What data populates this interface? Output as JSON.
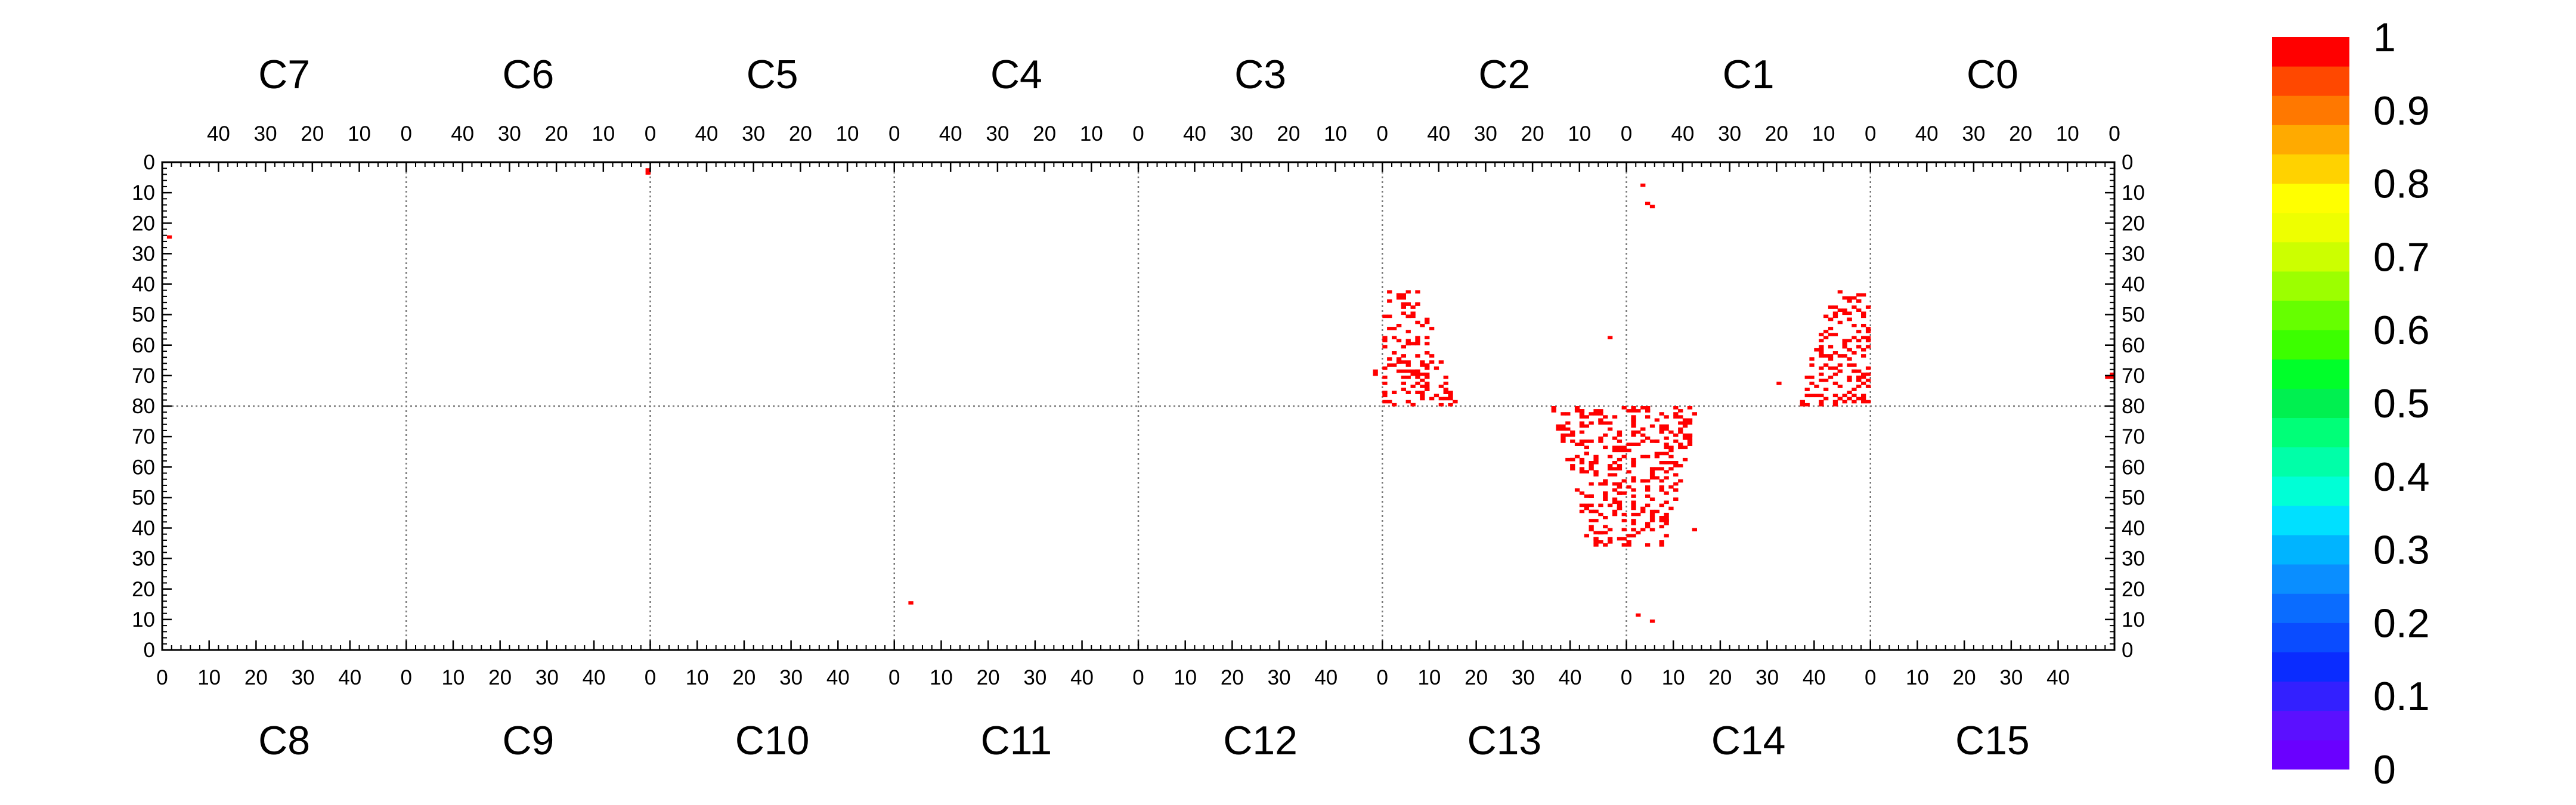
{
  "chart_data": {
    "type": "heatmap",
    "title": "",
    "xlabel": "",
    "ylabel": "",
    "grid": "dotted dividers between chips",
    "top_chips": [
      "C7",
      "C6",
      "C5",
      "C4",
      "C3",
      "C2",
      "C1",
      "C0"
    ],
    "bottom_chips": [
      "C8",
      "C9",
      "C10",
      "C11",
      "C12",
      "C13",
      "C14",
      "C15"
    ],
    "top_x_tick_labels": [
      "40",
      "30",
      "20",
      "10",
      "0"
    ],
    "bottom_x_tick_labels": [
      "0",
      "10",
      "20",
      "30",
      "40"
    ],
    "chip_column_range": [
      0,
      52
    ],
    "top_y_tick_labels": [
      "0",
      "10",
      "20",
      "30",
      "40",
      "50",
      "60",
      "70",
      "80"
    ],
    "bottom_y_tick_labels": [
      "70",
      "60",
      "50",
      "40",
      "30",
      "20",
      "10",
      "0"
    ],
    "half_row_range": [
      0,
      80
    ],
    "colorbar": {
      "ticks": [
        "0",
        "0.1",
        "0.2",
        "0.3",
        "0.4",
        "0.5",
        "0.6",
        "0.7",
        "0.8",
        "0.9",
        "1"
      ],
      "range": [
        0,
        1
      ],
      "colors": [
        "#6a00ff",
        "#5b10ff",
        "#3320ff",
        "#0a2cff",
        "#0a4cff",
        "#0a6cff",
        "#0a8eff",
        "#00b4ff",
        "#00e0ff",
        "#00ffd6",
        "#00ffa8",
        "#00ff78",
        "#00f050",
        "#00ff2a",
        "#3cff00",
        "#66ff00",
        "#9cff00",
        "#ccff00",
        "#eeff00",
        "#ffff00",
        "#ffd200",
        "#ffaa00",
        "#ff7800",
        "#ff4800",
        "#ff0000"
      ]
    },
    "pixel_value": 1,
    "pixels": [
      {
        "chip": "C6",
        "col": 0,
        "row": 2
      },
      {
        "chip": "C6",
        "col": 0,
        "row": 3
      },
      {
        "chip": "C7",
        "col": 50,
        "row": 24
      },
      {
        "chip": "C3",
        "col": 1,
        "row": 68
      },
      {
        "chip": "C3",
        "col": 1,
        "row": 69
      },
      {
        "chip": "C0",
        "col": 0,
        "row": 69
      },
      {
        "chip": "C0",
        "col": 0,
        "row": 70
      },
      {
        "chip": "C0",
        "col": 1,
        "row": 70
      },
      {
        "chip": "C11",
        "col": 3,
        "row": 15
      },
      {
        "chip": "C1",
        "col": 48,
        "row": 7
      },
      {
        "chip": "C1",
        "col": 47,
        "row": 13
      },
      {
        "chip": "C1",
        "col": 46,
        "row": 14
      },
      {
        "chip": "C14",
        "col": 2,
        "row": 11
      },
      {
        "chip": "C14",
        "col": 5,
        "row": 9
      },
      {
        "chip": "C2",
        "col": 3,
        "row": 57
      },
      {
        "chip": "C1",
        "col": 19,
        "row": 72
      },
      {
        "chip": "C14",
        "col": 14,
        "row": 39
      }
    ]
  }
}
